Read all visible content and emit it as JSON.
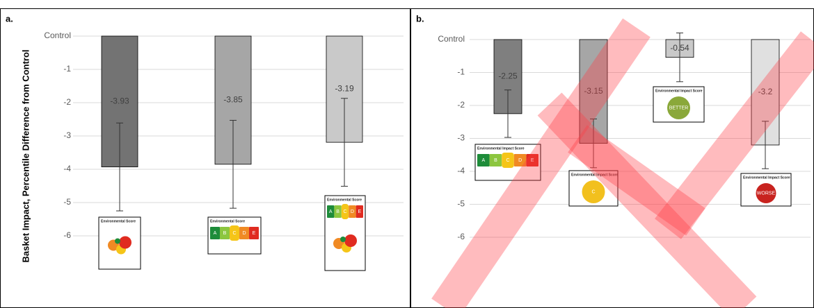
{
  "chart_data": [
    {
      "type": "bar",
      "title": "a.",
      "y_label": "Basket Impact, Percentile Difference from Control",
      "categories": [
        null,
        null,
        null
      ],
      "values": [
        -3.93,
        -3.85,
        -3.19
      ],
      "errors": [
        1.32,
        1.32,
        1.32
      ],
      "colors": [
        "#737373",
        "#a6a6a6",
        "#c9c9c9"
      ],
      "ylim": [
        -7,
        0
      ],
      "yticks": [
        {
          "value": 0,
          "label": "Control"
        },
        -1,
        -2,
        -3,
        -4,
        -5,
        -6
      ],
      "grid": true,
      "badges": [
        {
          "title": "Environmental Score"
        },
        {
          "title": "Environmental Score",
          "scale": [
            "A",
            "B",
            "C",
            "D",
            "E"
          ]
        },
        {
          "title": "Environmental Score",
          "scale": [
            "A",
            "B",
            "C",
            "D",
            "E"
          ]
        }
      ]
    },
    {
      "type": "bar",
      "title": "b.",
      "categories": [
        null,
        null,
        null,
        null
      ],
      "values": [
        -2.25,
        -3.15,
        -0.54,
        -3.2
      ],
      "errors": [
        0.72,
        0.74,
        0.74,
        0.72
      ],
      "colors": [
        "#7f7f7f",
        "#a6a6a6",
        "#c9c9c9",
        "#e0e0e0"
      ],
      "ylim": [
        -7,
        0
      ],
      "yticks": [
        {
          "value": 0,
          "label": "Control"
        },
        -1,
        -2,
        -3,
        -4,
        -5,
        -6
      ],
      "grid": true,
      "badges": [
        {
          "title": "Environmental Impact Score",
          "scale": [
            "A",
            "B",
            "C",
            "D",
            "E"
          ]
        },
        {
          "title": "Environmental Impact Score",
          "text": "C"
        },
        {
          "title": "Environmental Impact Score",
          "text": "BETTER"
        },
        {
          "title": "Environmental Impact Score",
          "text": "WORSE"
        }
      ]
    }
  ]
}
